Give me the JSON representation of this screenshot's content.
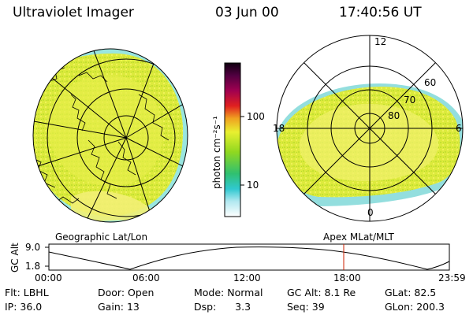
{
  "header": {
    "instrument": "Ultraviolet Imager",
    "date": "03 Jun 00",
    "time": "17:40:56 UT"
  },
  "colorbar": {
    "unit_label": "photon cm⁻²s⁻¹",
    "ticks": [
      "100",
      "10"
    ]
  },
  "left_map": {
    "caption": "Geographic Lat/Lon"
  },
  "right_map": {
    "caption": "Apex MLat/MLT",
    "mlt_labels": [
      "12",
      "18",
      "6",
      "0"
    ],
    "lat_labels": [
      "60",
      "70",
      "80"
    ]
  },
  "altitude_plot": {
    "ylabel": "GC Alt",
    "yticks": [
      "9.0",
      "1.8"
    ],
    "xticks": [
      "00:00",
      "06:00",
      "12:00",
      "18:00",
      "23:59"
    ]
  },
  "status": {
    "row1": [
      {
        "label": "Flt:",
        "value": "LBHL"
      },
      {
        "label": "Door:",
        "value": "Open"
      },
      {
        "label": "Mode:",
        "value": "Normal"
      },
      {
        "label": "GC Alt:",
        "value": "8.1 Re"
      },
      {
        "label": "GLat:",
        "value": "82.5"
      }
    ],
    "row2": [
      {
        "label": "IP:",
        "value": "36.0"
      },
      {
        "label": "Gain:",
        "value": "13"
      },
      {
        "label": "Dsp:",
        "value": "3.3"
      },
      {
        "label": "Seq:",
        "value": "39"
      },
      {
        "label": "GLon:",
        "value": "200.3"
      }
    ]
  },
  "colors": {
    "aurora_main": "#e0ec3c",
    "aurora_bright": "#f4f070",
    "aurora_green": "#a8dc2c",
    "aurora_edge": "#38c8c0",
    "time_marker": "#cc2200"
  }
}
